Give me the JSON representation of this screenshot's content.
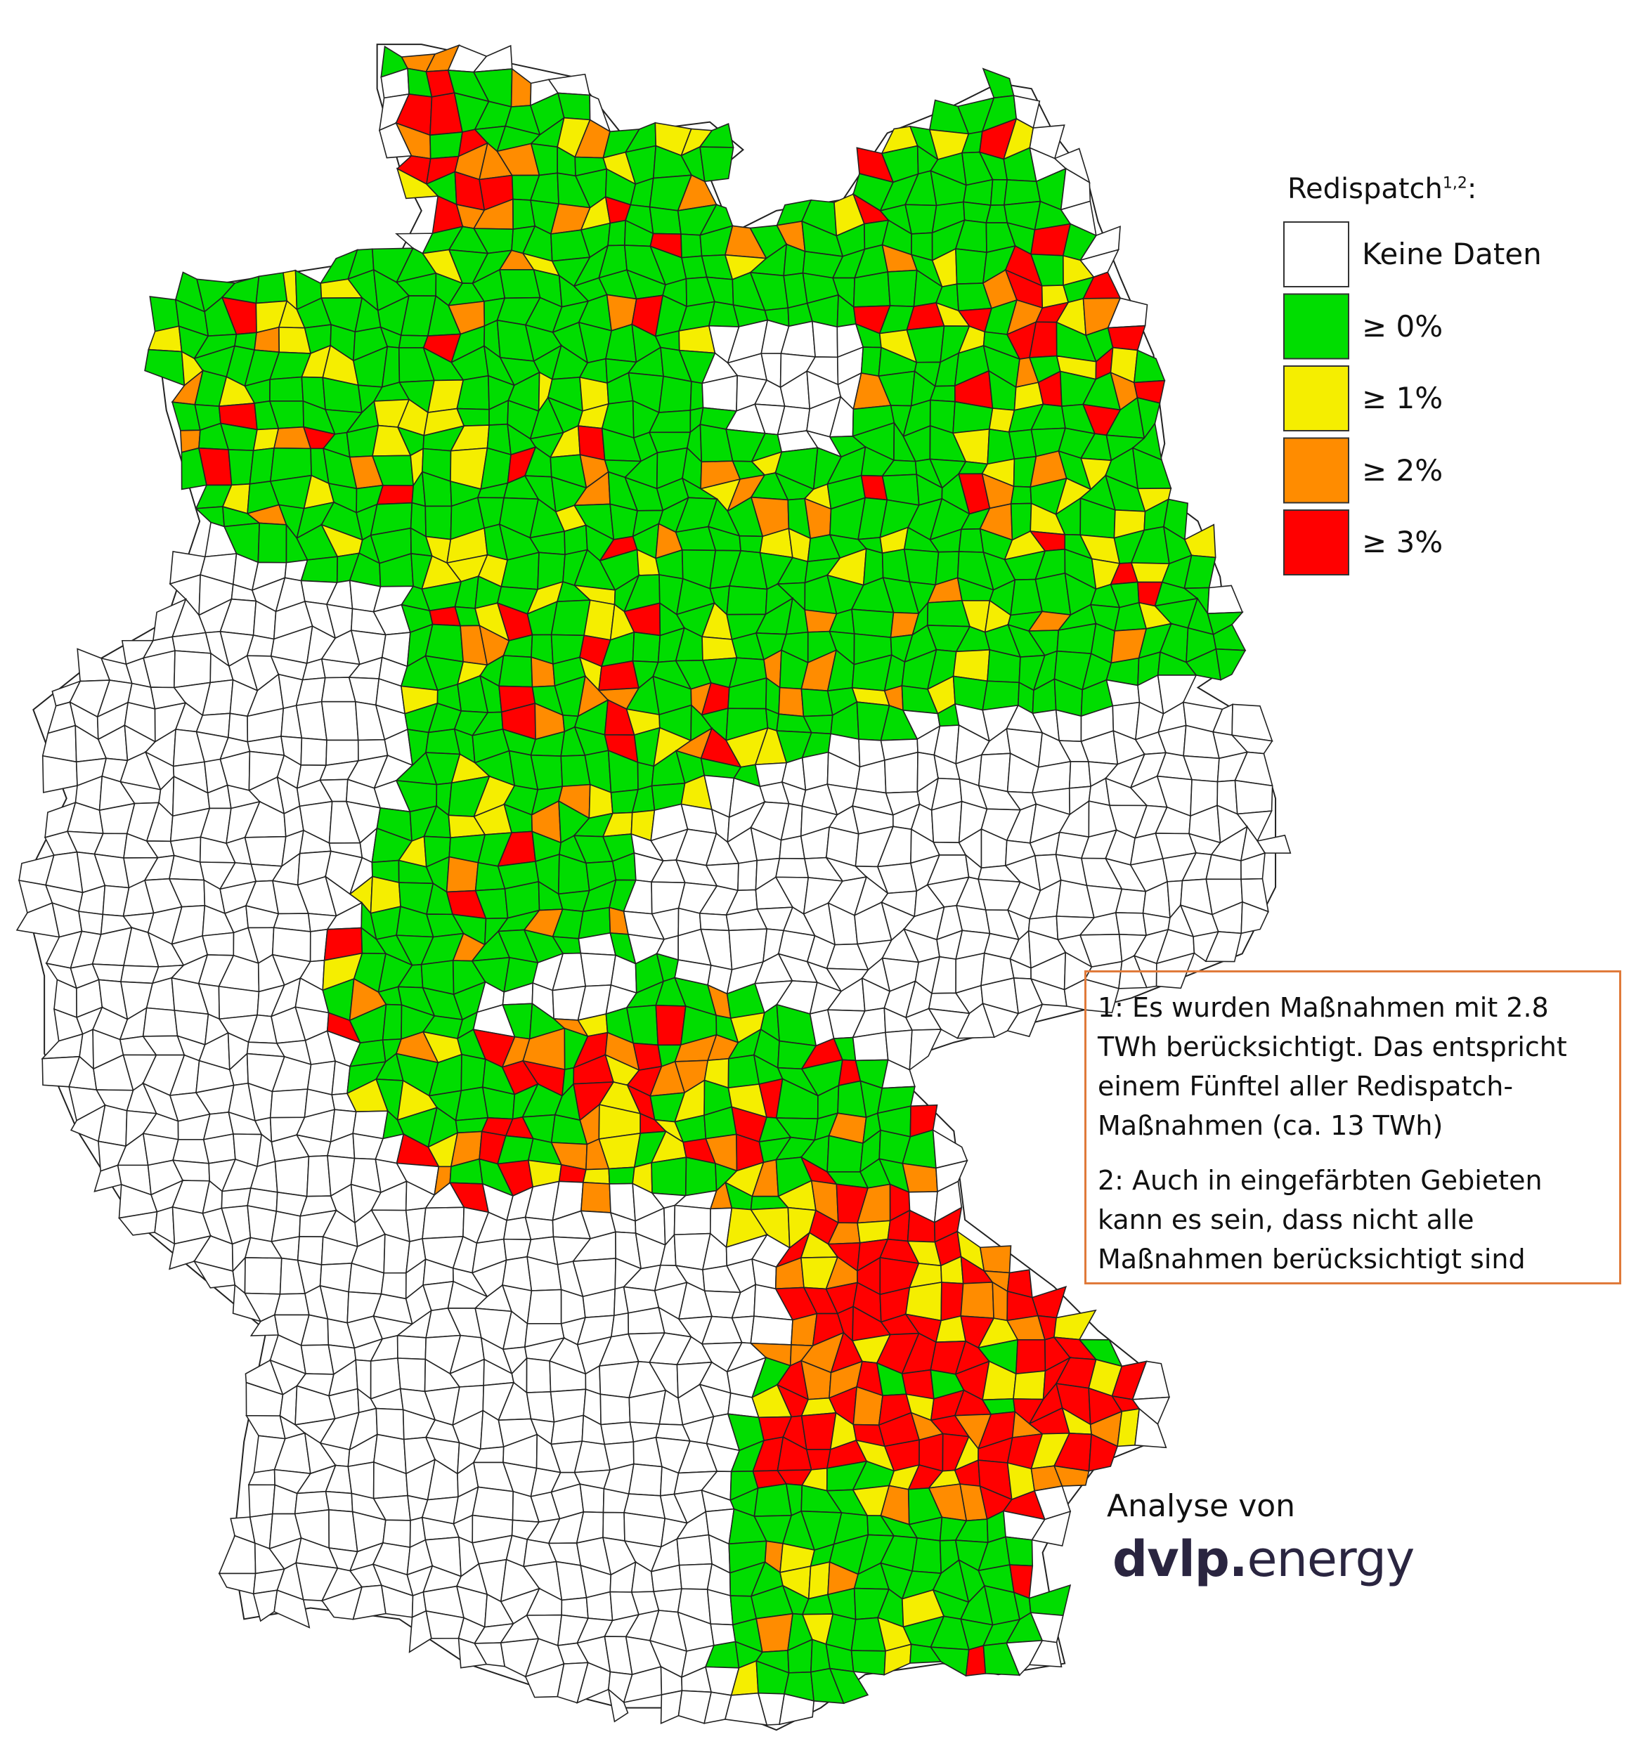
{
  "legend": {
    "title": "Redispatch",
    "title_superscript": "1,2",
    "title_suffix": ":",
    "items": [
      {
        "label": "Keine Daten",
        "color": "#ffffff"
      },
      {
        "label": "≥ 0%",
        "color": "#00dd00"
      },
      {
        "label": "≥ 1%",
        "color": "#f5ee00"
      },
      {
        "label": "≥ 2%",
        "color": "#ff8c00"
      },
      {
        "label": "≥ 3%",
        "color": "#ff0000"
      }
    ]
  },
  "notes": [
    "1: Es wurden Maßnahmen mit 2.8 TWh berücksichtigt. Das entspricht einem Fünftel aller Redispatch-Maßnahmen (ca. 13 TWh)",
    "2: Auch in eingefärbten Gebieten kann es sein, dass nicht alle Maßnahmen berücksichtigt sind"
  ],
  "credit": {
    "prefix": "Analyse von",
    "brand_bold": "dvlp.",
    "brand_rest": "energy"
  }
}
